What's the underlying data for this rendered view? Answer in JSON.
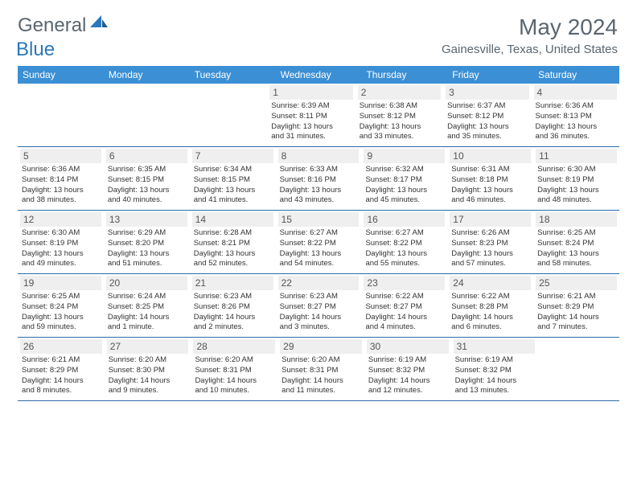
{
  "logo": {
    "general": "General",
    "blue": "Blue"
  },
  "title": "May 2024",
  "location": "Gainesville, Texas, United States",
  "day_headers": [
    "Sunday",
    "Monday",
    "Tuesday",
    "Wednesday",
    "Thursday",
    "Friday",
    "Saturday"
  ],
  "colors": {
    "header_bg": "#3b8fd4",
    "header_text": "#ffffff",
    "row_border": "#2a6aa8",
    "daynum_bg": "#efefef",
    "text": "#333333",
    "logo_gray": "#5a6670",
    "logo_blue": "#2a77bb"
  },
  "typography": {
    "title_fontsize": 28,
    "location_fontsize": 15,
    "header_fontsize": 12,
    "daynum_fontsize": 12,
    "info_fontsize": 9.5
  },
  "weeks": [
    [
      null,
      null,
      null,
      {
        "day": "1",
        "sunrise": "Sunrise: 6:39 AM",
        "sunset": "Sunset: 8:11 PM",
        "daylight1": "Daylight: 13 hours",
        "daylight2": "and 31 minutes."
      },
      {
        "day": "2",
        "sunrise": "Sunrise: 6:38 AM",
        "sunset": "Sunset: 8:12 PM",
        "daylight1": "Daylight: 13 hours",
        "daylight2": "and 33 minutes."
      },
      {
        "day": "3",
        "sunrise": "Sunrise: 6:37 AM",
        "sunset": "Sunset: 8:12 PM",
        "daylight1": "Daylight: 13 hours",
        "daylight2": "and 35 minutes."
      },
      {
        "day": "4",
        "sunrise": "Sunrise: 6:36 AM",
        "sunset": "Sunset: 8:13 PM",
        "daylight1": "Daylight: 13 hours",
        "daylight2": "and 36 minutes."
      }
    ],
    [
      {
        "day": "5",
        "sunrise": "Sunrise: 6:36 AM",
        "sunset": "Sunset: 8:14 PM",
        "daylight1": "Daylight: 13 hours",
        "daylight2": "and 38 minutes."
      },
      {
        "day": "6",
        "sunrise": "Sunrise: 6:35 AM",
        "sunset": "Sunset: 8:15 PM",
        "daylight1": "Daylight: 13 hours",
        "daylight2": "and 40 minutes."
      },
      {
        "day": "7",
        "sunrise": "Sunrise: 6:34 AM",
        "sunset": "Sunset: 8:15 PM",
        "daylight1": "Daylight: 13 hours",
        "daylight2": "and 41 minutes."
      },
      {
        "day": "8",
        "sunrise": "Sunrise: 6:33 AM",
        "sunset": "Sunset: 8:16 PM",
        "daylight1": "Daylight: 13 hours",
        "daylight2": "and 43 minutes."
      },
      {
        "day": "9",
        "sunrise": "Sunrise: 6:32 AM",
        "sunset": "Sunset: 8:17 PM",
        "daylight1": "Daylight: 13 hours",
        "daylight2": "and 45 minutes."
      },
      {
        "day": "10",
        "sunrise": "Sunrise: 6:31 AM",
        "sunset": "Sunset: 8:18 PM",
        "daylight1": "Daylight: 13 hours",
        "daylight2": "and 46 minutes."
      },
      {
        "day": "11",
        "sunrise": "Sunrise: 6:30 AM",
        "sunset": "Sunset: 8:19 PM",
        "daylight1": "Daylight: 13 hours",
        "daylight2": "and 48 minutes."
      }
    ],
    [
      {
        "day": "12",
        "sunrise": "Sunrise: 6:30 AM",
        "sunset": "Sunset: 8:19 PM",
        "daylight1": "Daylight: 13 hours",
        "daylight2": "and 49 minutes."
      },
      {
        "day": "13",
        "sunrise": "Sunrise: 6:29 AM",
        "sunset": "Sunset: 8:20 PM",
        "daylight1": "Daylight: 13 hours",
        "daylight2": "and 51 minutes."
      },
      {
        "day": "14",
        "sunrise": "Sunrise: 6:28 AM",
        "sunset": "Sunset: 8:21 PM",
        "daylight1": "Daylight: 13 hours",
        "daylight2": "and 52 minutes."
      },
      {
        "day": "15",
        "sunrise": "Sunrise: 6:27 AM",
        "sunset": "Sunset: 8:22 PM",
        "daylight1": "Daylight: 13 hours",
        "daylight2": "and 54 minutes."
      },
      {
        "day": "16",
        "sunrise": "Sunrise: 6:27 AM",
        "sunset": "Sunset: 8:22 PM",
        "daylight1": "Daylight: 13 hours",
        "daylight2": "and 55 minutes."
      },
      {
        "day": "17",
        "sunrise": "Sunrise: 6:26 AM",
        "sunset": "Sunset: 8:23 PM",
        "daylight1": "Daylight: 13 hours",
        "daylight2": "and 57 minutes."
      },
      {
        "day": "18",
        "sunrise": "Sunrise: 6:25 AM",
        "sunset": "Sunset: 8:24 PM",
        "daylight1": "Daylight: 13 hours",
        "daylight2": "and 58 minutes."
      }
    ],
    [
      {
        "day": "19",
        "sunrise": "Sunrise: 6:25 AM",
        "sunset": "Sunset: 8:24 PM",
        "daylight1": "Daylight: 13 hours",
        "daylight2": "and 59 minutes."
      },
      {
        "day": "20",
        "sunrise": "Sunrise: 6:24 AM",
        "sunset": "Sunset: 8:25 PM",
        "daylight1": "Daylight: 14 hours",
        "daylight2": "and 1 minute."
      },
      {
        "day": "21",
        "sunrise": "Sunrise: 6:23 AM",
        "sunset": "Sunset: 8:26 PM",
        "daylight1": "Daylight: 14 hours",
        "daylight2": "and 2 minutes."
      },
      {
        "day": "22",
        "sunrise": "Sunrise: 6:23 AM",
        "sunset": "Sunset: 8:27 PM",
        "daylight1": "Daylight: 14 hours",
        "daylight2": "and 3 minutes."
      },
      {
        "day": "23",
        "sunrise": "Sunrise: 6:22 AM",
        "sunset": "Sunset: 8:27 PM",
        "daylight1": "Daylight: 14 hours",
        "daylight2": "and 4 minutes."
      },
      {
        "day": "24",
        "sunrise": "Sunrise: 6:22 AM",
        "sunset": "Sunset: 8:28 PM",
        "daylight1": "Daylight: 14 hours",
        "daylight2": "and 6 minutes."
      },
      {
        "day": "25",
        "sunrise": "Sunrise: 6:21 AM",
        "sunset": "Sunset: 8:29 PM",
        "daylight1": "Daylight: 14 hours",
        "daylight2": "and 7 minutes."
      }
    ],
    [
      {
        "day": "26",
        "sunrise": "Sunrise: 6:21 AM",
        "sunset": "Sunset: 8:29 PM",
        "daylight1": "Daylight: 14 hours",
        "daylight2": "and 8 minutes."
      },
      {
        "day": "27",
        "sunrise": "Sunrise: 6:20 AM",
        "sunset": "Sunset: 8:30 PM",
        "daylight1": "Daylight: 14 hours",
        "daylight2": "and 9 minutes."
      },
      {
        "day": "28",
        "sunrise": "Sunrise: 6:20 AM",
        "sunset": "Sunset: 8:31 PM",
        "daylight1": "Daylight: 14 hours",
        "daylight2": "and 10 minutes."
      },
      {
        "day": "29",
        "sunrise": "Sunrise: 6:20 AM",
        "sunset": "Sunset: 8:31 PM",
        "daylight1": "Daylight: 14 hours",
        "daylight2": "and 11 minutes."
      },
      {
        "day": "30",
        "sunrise": "Sunrise: 6:19 AM",
        "sunset": "Sunset: 8:32 PM",
        "daylight1": "Daylight: 14 hours",
        "daylight2": "and 12 minutes."
      },
      {
        "day": "31",
        "sunrise": "Sunrise: 6:19 AM",
        "sunset": "Sunset: 8:32 PM",
        "daylight1": "Daylight: 14 hours",
        "daylight2": "and 13 minutes."
      },
      null
    ]
  ]
}
